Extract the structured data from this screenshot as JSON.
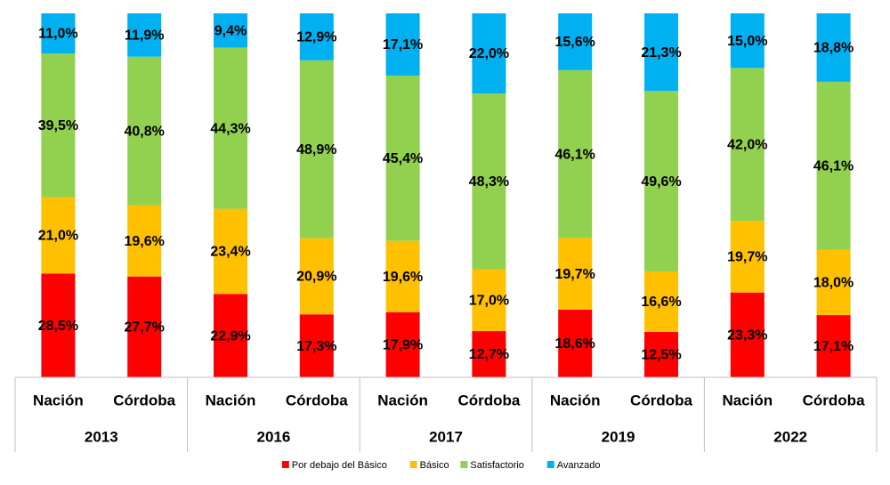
{
  "chart_data": {
    "type": "stacked_bar",
    "categories": [
      "Nación",
      "Córdoba",
      "Nación",
      "Córdoba",
      "Nación",
      "Córdoba",
      "Nación",
      "Córdoba",
      "Nación",
      "Córdoba"
    ],
    "groups": [
      "2013",
      "2016",
      "2017",
      "2019",
      "2022"
    ],
    "ylim": [
      0,
      100
    ],
    "series": [
      {
        "name": "Por debajo del Básico",
        "color": "#ff0000",
        "values": [
          28.5,
          27.7,
          22.9,
          17.3,
          17.9,
          12.7,
          18.6,
          12.5,
          23.3,
          17.1
        ],
        "value_labels": [
          "28,5%",
          "27,7%",
          "22,9%",
          "17,3%",
          "17,9%",
          "12,7%",
          "18,6%",
          "12,5%",
          "23,3%",
          "17,1%"
        ]
      },
      {
        "name": "Básico",
        "color": "#ffc000",
        "values": [
          21.0,
          19.6,
          23.4,
          20.9,
          19.6,
          17.0,
          19.7,
          16.6,
          19.7,
          18.0
        ],
        "value_labels": [
          "21,0%",
          "19,6%",
          "23,4%",
          "20,9%",
          "19,6%",
          "17,0%",
          "19,7%",
          "16,6%",
          "19,7%",
          "18,0%"
        ]
      },
      {
        "name": "Satisfactorio",
        "color": "#92d050",
        "values": [
          39.5,
          40.8,
          44.3,
          48.9,
          45.4,
          48.3,
          46.1,
          49.6,
          42.0,
          46.1
        ],
        "value_labels": [
          "39,5%",
          "40,8%",
          "44,3%",
          "48,9%",
          "45,4%",
          "48,3%",
          "46,1%",
          "49,6%",
          "42,0%",
          "46,1%"
        ]
      },
      {
        "name": "Avanzado",
        "color": "#00b0f0",
        "values": [
          11.0,
          11.9,
          9.4,
          12.9,
          17.1,
          22.0,
          15.6,
          21.3,
          15.0,
          18.8
        ],
        "value_labels": [
          "11,0%",
          "11,9%",
          "9,4%",
          "12,9%",
          "17,1%",
          "22,0%",
          "15,6%",
          "21,3%",
          "15,0%",
          "18,8%"
        ]
      }
    ],
    "legend": "bottom"
  }
}
